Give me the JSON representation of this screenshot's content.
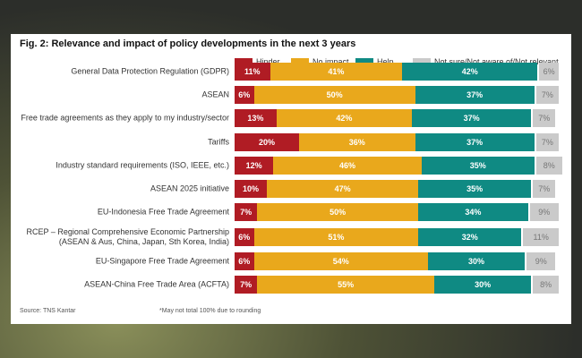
{
  "chart_data": {
    "type": "stacked-bar-horizontal",
    "title": "Fig. 2: Relevance and impact of policy developments in the next 3 years",
    "categories": [
      "General Data Protection Regulation (GDPR)",
      "ASEAN",
      "Free trade agreements as they apply to my industry/sector",
      "Tariffs",
      "Industry standard requirements (ISO, IEEE, etc.)",
      "ASEAN 2025 initiative",
      "EU-Indonesia Free Trade Agreement",
      "RCEP – Regional Comprehensive Economic Partnership\n(ASEAN & Aus, China, Japan, Sth Korea, India)",
      "EU-Singapore Free Trade Agreement",
      "ASEAN-China Free Trade Area (ACFTA)"
    ],
    "series": [
      {
        "name": "Hinder",
        "color": "#b01c24",
        "values": [
          11,
          6,
          13,
          20,
          12,
          10,
          7,
          6,
          6,
          7
        ],
        "value_labels": [
          "11%",
          "6%",
          "13%",
          "20%",
          "12%",
          "10%",
          "7%",
          "6%",
          "6%",
          "7%"
        ]
      },
      {
        "name": "No impact",
        "color": "#e9a81c",
        "values": [
          41,
          50,
          42,
          36,
          46,
          47,
          50,
          51,
          54,
          55
        ],
        "value_labels": [
          "41%",
          "50%",
          "42%",
          "36%",
          "46%",
          "47%",
          "50%",
          "51%",
          "54%",
          "55%"
        ]
      },
      {
        "name": "Help",
        "color": "#0f8a83",
        "values": [
          42,
          37,
          37,
          37,
          35,
          35,
          34,
          32,
          30,
          30
        ],
        "value_labels": [
          "42%",
          "37%",
          "37%",
          "37%",
          "35%",
          "35%",
          "34%",
          "32%",
          "30%",
          "30%"
        ]
      },
      {
        "name": "Not sure/Not aware of/Not relevant",
        "color": "#cacaca",
        "values": [
          6,
          7,
          7,
          7,
          8,
          7,
          9,
          11,
          9,
          8
        ],
        "value_labels": [
          "6%",
          "7%",
          "7%",
          "7%",
          "8%",
          "7%",
          "9%",
          "11%",
          "9%",
          "8%"
        ]
      }
    ],
    "source": "Source: TNS Kantar",
    "note": "*May not total 100% due to rounding"
  }
}
